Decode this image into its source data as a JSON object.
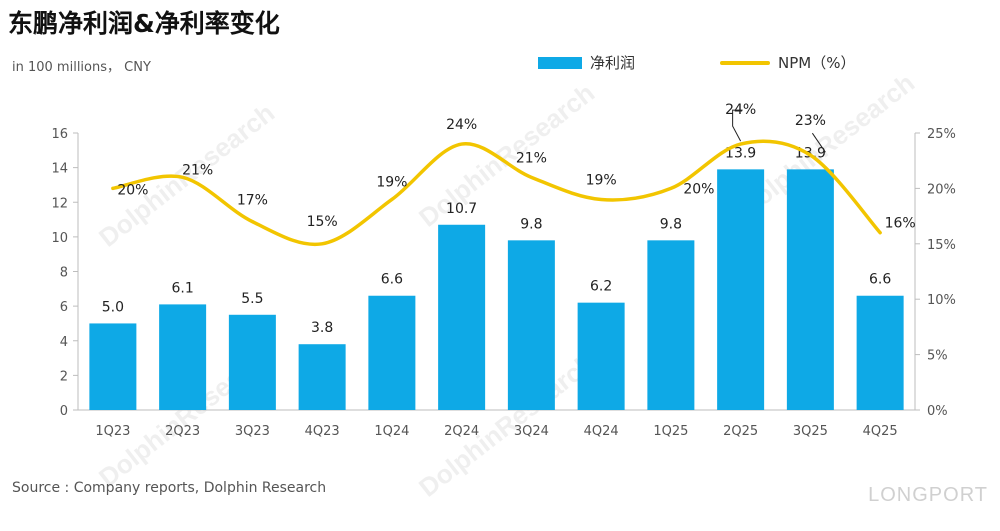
{
  "title": "东鹏净利润&净利率变化",
  "unit_label": "in 100 millions， CNY",
  "source": "Source : Company reports, Dolphin Research",
  "logo_text": "LONGPORT",
  "watermark": "DolphinResearch",
  "colors": {
    "bar": "#0ea9e6",
    "line": "#f2c500"
  },
  "chart_data": {
    "type": "bar+line",
    "categories": [
      "1Q23",
      "2Q23",
      "3Q23",
      "4Q23",
      "1Q24",
      "2Q24",
      "3Q24",
      "4Q24",
      "1Q25",
      "2Q25",
      "3Q25",
      "4Q25"
    ],
    "series": [
      {
        "name": "净利润",
        "type": "bar",
        "axis": "left",
        "values": [
          5.0,
          6.1,
          5.5,
          3.8,
          6.6,
          10.7,
          9.8,
          6.2,
          9.8,
          13.9,
          13.9,
          6.6
        ],
        "labels": [
          "5.0",
          "6.1",
          "5.5",
          "3.8",
          "6.6",
          "10.7",
          "9.8",
          "6.2",
          "9.8",
          "13.9",
          "13.9",
          "6.6"
        ]
      },
      {
        "name": "NPM（%）",
        "type": "line",
        "axis": "right",
        "values": [
          20,
          21,
          17,
          15,
          19,
          24,
          21,
          19,
          20,
          24,
          23,
          16
        ],
        "labels": [
          "20%",
          "21%",
          "17%",
          "15%",
          "19%",
          "24%",
          "21%",
          "19%",
          "20%",
          "24%",
          "23%",
          "16%"
        ]
      }
    ],
    "y_left": {
      "min": 0,
      "max": 16,
      "ticks": [
        "0",
        "2",
        "4",
        "6",
        "8",
        "10",
        "12",
        "14",
        "16"
      ]
    },
    "y_right": {
      "min": 0,
      "max": 25,
      "ticks": [
        "0%",
        "5%",
        "10%",
        "15%",
        "20%",
        "25%"
      ]
    },
    "legend": {
      "position": "top-center"
    },
    "grid": false
  }
}
